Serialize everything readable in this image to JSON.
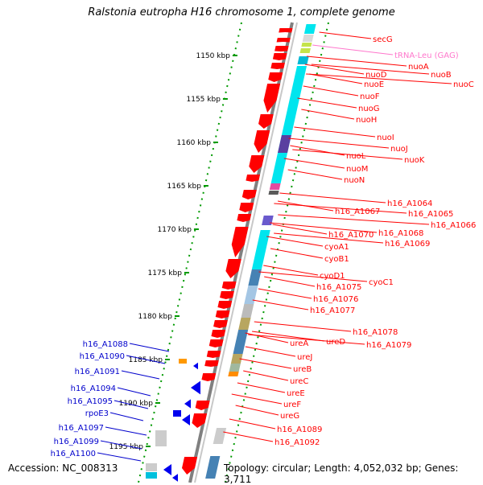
{
  "title": "Ralstonia eutropha H16 chromosome 1, complete genome",
  "accession": "Accession: NC_008313",
  "summary": "Topology: circular; Length: 4,052,032 bp; Genes: 3,711",
  "colors": {
    "red_gene": "#ff0000",
    "cyan_gene": "#00e5ee",
    "steel_blue_gene": "#4682b4",
    "blue_label": "#0000cc",
    "trna_label": "#ff77cc",
    "ruler_tick": "#009900",
    "backbone": "#808080"
  },
  "scale_labels": [
    "1150 kbp",
    "1155 kbp",
    "1160 kbp",
    "1165 kbp",
    "1170 kbp",
    "1175 kbp",
    "1180 kbp",
    "1185 kbp",
    "1190 kbp",
    "1195 kbp"
  ],
  "right_labels": [
    {
      "text": "secG",
      "color": "red"
    },
    {
      "text": "tRNA-Leu (GAG)",
      "color": "pink"
    },
    {
      "text": "nuoA",
      "color": "red"
    },
    {
      "text": "nuoB",
      "color": "red"
    },
    {
      "text": "nuoC",
      "color": "red"
    },
    {
      "text": "nuoD",
      "color": "red"
    },
    {
      "text": "nuoE",
      "color": "red"
    },
    {
      "text": "nuoF",
      "color": "red"
    },
    {
      "text": "nuoG",
      "color": "red"
    },
    {
      "text": "nuoH",
      "color": "red"
    },
    {
      "text": "nuoI",
      "color": "red"
    },
    {
      "text": "nuoJ",
      "color": "red"
    },
    {
      "text": "nuoK",
      "color": "red"
    },
    {
      "text": "nuoL",
      "color": "red"
    },
    {
      "text": "nuoM",
      "color": "red"
    },
    {
      "text": "nuoN",
      "color": "red"
    },
    {
      "text": "h16_A1064",
      "color": "red"
    },
    {
      "text": "h16_A1065",
      "color": "red"
    },
    {
      "text": "h16_A1066",
      "color": "red"
    },
    {
      "text": "h16_A1067",
      "color": "red"
    },
    {
      "text": "h16_A1068",
      "color": "red"
    },
    {
      "text": "h16_A1069",
      "color": "red"
    },
    {
      "text": "h16_A1070",
      "color": "red"
    },
    {
      "text": "cyoA1",
      "color": "red"
    },
    {
      "text": "cyoB1",
      "color": "red"
    },
    {
      "text": "cyoD1",
      "color": "red"
    },
    {
      "text": "cyoC1",
      "color": "red"
    },
    {
      "text": "h16_A1075",
      "color": "red"
    },
    {
      "text": "h16_A1076",
      "color": "red"
    },
    {
      "text": "h16_A1077",
      "color": "red"
    },
    {
      "text": "h16_A1078",
      "color": "red"
    },
    {
      "text": "h16_A1079",
      "color": "red"
    },
    {
      "text": "ureA",
      "color": "red"
    },
    {
      "text": "ureD",
      "color": "red"
    },
    {
      "text": "ureJ",
      "color": "red"
    },
    {
      "text": "ureB",
      "color": "red"
    },
    {
      "text": "ureC",
      "color": "red"
    },
    {
      "text": "ureE",
      "color": "red"
    },
    {
      "text": "ureF",
      "color": "red"
    },
    {
      "text": "ureG",
      "color": "red"
    },
    {
      "text": "h16_A1089",
      "color": "red"
    },
    {
      "text": "h16_A1092",
      "color": "red"
    }
  ],
  "left_labels": [
    "h16_A1088",
    "h16_A1090",
    "h16_A1091",
    "h16_A1094",
    "h16_A1095",
    "rpoE3",
    "h16_A1097",
    "h16_A1099",
    "h16_A1100"
  ]
}
